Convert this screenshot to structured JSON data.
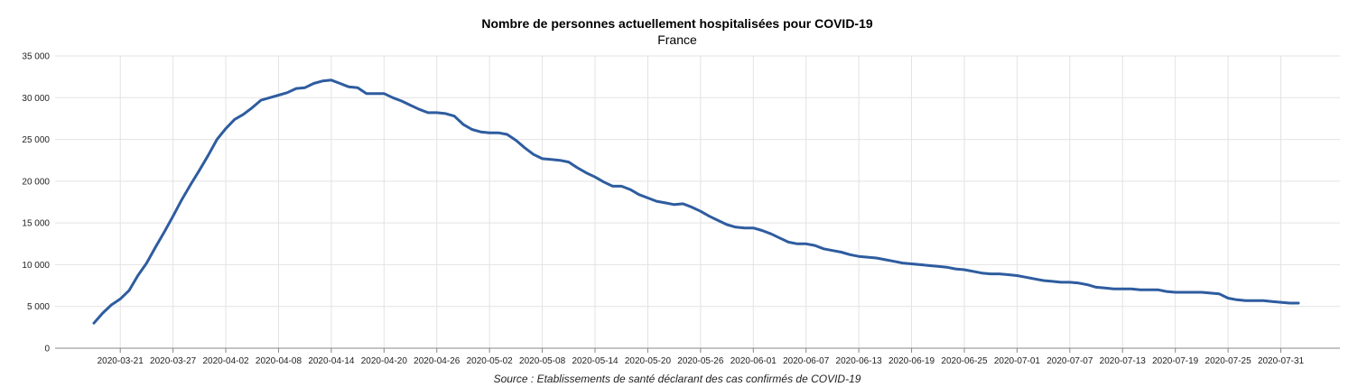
{
  "chart_data": {
    "type": "line",
    "title": "Nombre de personnes actuellement hospitalisées pour COVID-19",
    "subtitle": "France",
    "source": "Source : Etablissements de santé déclarant des cas confirmés de COVID-19",
    "xlabel": "",
    "ylabel": "",
    "ylim": [
      0,
      35000
    ],
    "yticks": [
      0,
      5000,
      10000,
      15000,
      20000,
      25000,
      30000,
      35000
    ],
    "ytick_labels": [
      "0",
      "5 000",
      "10 000",
      "15 000",
      "20 000",
      "25 000",
      "30 000",
      "35 000"
    ],
    "x_start": "2020-03-18",
    "x_end": "2020-07-31",
    "xticks": [
      "2020-03-21",
      "2020-03-27",
      "2020-04-02",
      "2020-04-08",
      "2020-04-14",
      "2020-04-20",
      "2020-04-26",
      "2020-05-02",
      "2020-05-08",
      "2020-05-14",
      "2020-05-20",
      "2020-05-26",
      "2020-06-01",
      "2020-06-07",
      "2020-06-13",
      "2020-06-19",
      "2020-06-25",
      "2020-07-01",
      "2020-07-07",
      "2020-07-13",
      "2020-07-19",
      "2020-07-25",
      "2020-07-31"
    ],
    "grid": true,
    "color": "#2e5c9f",
    "series": [
      {
        "name": "",
        "values": [
          3000,
          4200,
          5200,
          5900,
          6900,
          8700,
          10200,
          12100,
          13900,
          15800,
          17800,
          19600,
          21300,
          23100,
          25000,
          26300,
          27400,
          28000,
          28800,
          29700,
          30000,
          30300,
          30600,
          31100,
          31200,
          31700,
          32000,
          32100,
          31700,
          31300,
          31200,
          30500,
          30500,
          30500,
          30000,
          29600,
          29100,
          28600,
          28200,
          28200,
          28100,
          27800,
          26800,
          26200,
          25900,
          25800,
          25800,
          25600,
          24900,
          24000,
          23200,
          22700,
          22600,
          22500,
          22300,
          21600,
          21000,
          20500,
          19900,
          19400,
          19400,
          19000,
          18400,
          18000,
          17600,
          17400,
          17200,
          17300,
          16900,
          16400,
          15800,
          15300,
          14800,
          14500,
          14400,
          14400,
          14100,
          13700,
          13200,
          12700,
          12500,
          12500,
          12300,
          11900,
          11700,
          11500,
          11200,
          11000,
          10900,
          10800,
          10600,
          10400,
          10200,
          10100,
          10000,
          9900,
          9800,
          9700,
          9500,
          9400,
          9200,
          9000,
          8900,
          8900,
          8800,
          8700,
          8500,
          8300,
          8100,
          8000,
          7900,
          7900,
          7800,
          7600,
          7300,
          7200,
          7100,
          7100,
          7100,
          7000,
          7000,
          7000,
          6800,
          6700,
          6700,
          6700,
          6700,
          6600,
          6500,
          6000,
          5800,
          5700,
          5700,
          5700,
          5600,
          5500,
          5400,
          5400
        ]
      }
    ]
  }
}
